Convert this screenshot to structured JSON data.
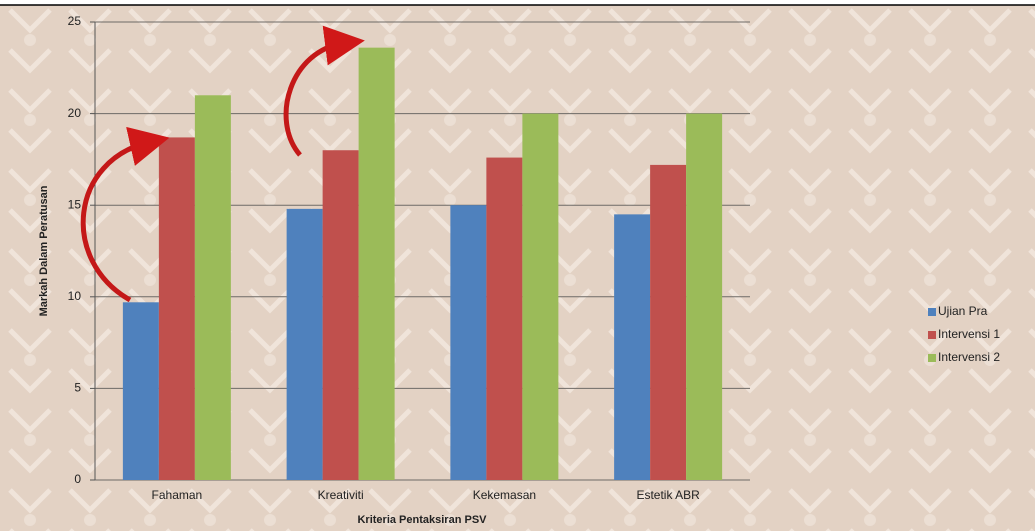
{
  "chart_data": {
    "type": "bar",
    "y_label": "Markah Dalam Peratusan",
    "x_label": "Kriteria Pentaksiran PSV",
    "categories": [
      "Fahaman",
      "Kreativiti",
      "Kekemasan",
      "Estetik ABR"
    ],
    "series": [
      {
        "name": "Ujian Pra",
        "color": "#4f81bd",
        "values": [
          9.7,
          14.8,
          15.0,
          14.5
        ]
      },
      {
        "name": "Intervensi 1",
        "color": "#c0504d",
        "values": [
          18.7,
          18.0,
          17.6,
          17.2
        ]
      },
      {
        "name": "Intervensi 2",
        "color": "#9bbb59",
        "values": [
          21.0,
          23.6,
          20.0,
          20.0
        ]
      }
    ],
    "ylim": [
      0,
      25
    ],
    "yticks": [
      0,
      5,
      10,
      15,
      20,
      25
    ],
    "grid": true,
    "legend": "right"
  }
}
